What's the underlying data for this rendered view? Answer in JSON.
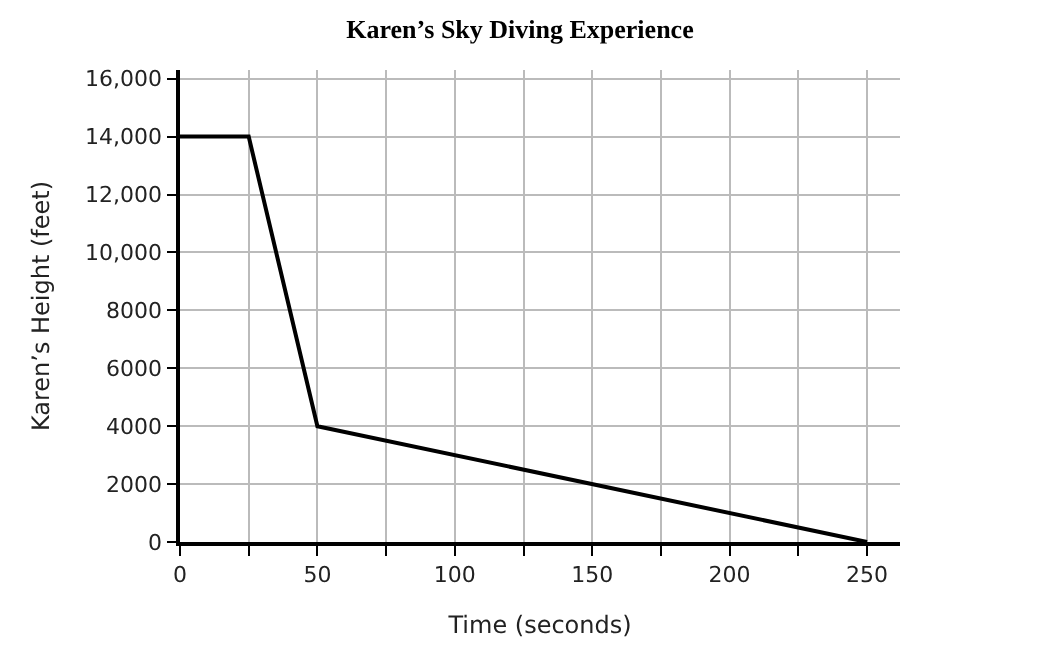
{
  "chart_data": {
    "type": "line",
    "title": "Karen’s Sky Diving Experience",
    "xlabel": "Time (seconds)",
    "ylabel": "Karen’s Height (feet)",
    "x": [
      0,
      25,
      50,
      250
    ],
    "series": [
      {
        "color": "#000000",
        "values": [
          14000,
          14000,
          4000,
          0
        ]
      }
    ],
    "xlim": [
      0,
      262
    ],
    "ylim": [
      0,
      16300
    ],
    "xticks": [
      0,
      {
        "value": 25,
        "label": null
      },
      50,
      {
        "value": 75,
        "label": null
      },
      100,
      {
        "value": 125,
        "label": null
      },
      150,
      {
        "value": 175,
        "label": null
      },
      200,
      {
        "value": 225,
        "label": null
      },
      250
    ],
    "yticks": [
      0,
      2000,
      4000,
      6000,
      8000,
      {
        "value": 10000,
        "label": "10,000"
      },
      {
        "value": 12000,
        "label": "12,000"
      },
      {
        "value": 14000,
        "label": "14,000"
      },
      {
        "value": 16000,
        "label": "16,000"
      }
    ],
    "grid": true,
    "marker": "none",
    "line_style": "solid"
  }
}
